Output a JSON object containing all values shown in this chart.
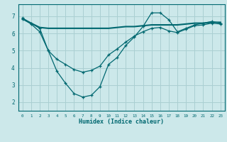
{
  "xlabel": "Humidex (Indice chaleur)",
  "bg_color": "#cce8ea",
  "grid_color": "#aacfd2",
  "line_color": "#006870",
  "x_values": [
    0,
    1,
    2,
    3,
    4,
    5,
    6,
    7,
    8,
    9,
    10,
    11,
    12,
    13,
    14,
    15,
    16,
    17,
    18,
    19,
    20,
    21,
    22,
    23
  ],
  "line1": [
    6.9,
    6.6,
    6.3,
    5.0,
    3.8,
    3.1,
    2.5,
    2.3,
    2.4,
    2.9,
    4.2,
    4.6,
    5.3,
    5.8,
    6.4,
    7.2,
    7.2,
    6.8,
    6.1,
    6.3,
    6.5,
    6.6,
    6.7,
    6.6
  ],
  "line2": [
    6.85,
    6.6,
    6.35,
    6.3,
    6.3,
    6.3,
    6.3,
    6.3,
    6.3,
    6.3,
    6.3,
    6.35,
    6.4,
    6.4,
    6.45,
    6.5,
    6.5,
    6.5,
    6.5,
    6.55,
    6.6,
    6.6,
    6.65,
    6.65
  ],
  "line3": [
    6.85,
    6.55,
    6.1,
    5.0,
    4.5,
    4.2,
    3.9,
    3.75,
    3.85,
    4.1,
    4.75,
    5.1,
    5.5,
    5.85,
    6.1,
    6.3,
    6.35,
    6.15,
    6.05,
    6.25,
    6.45,
    6.5,
    6.6,
    6.55
  ],
  "ylim": [
    1.5,
    7.7
  ],
  "xlim": [
    -0.5,
    23.5
  ],
  "yticks": [
    2,
    3,
    4,
    5,
    6,
    7
  ],
  "xticks": [
    0,
    1,
    2,
    3,
    4,
    5,
    6,
    7,
    8,
    9,
    10,
    11,
    12,
    13,
    14,
    15,
    16,
    17,
    18,
    19,
    20,
    21,
    22,
    23
  ]
}
